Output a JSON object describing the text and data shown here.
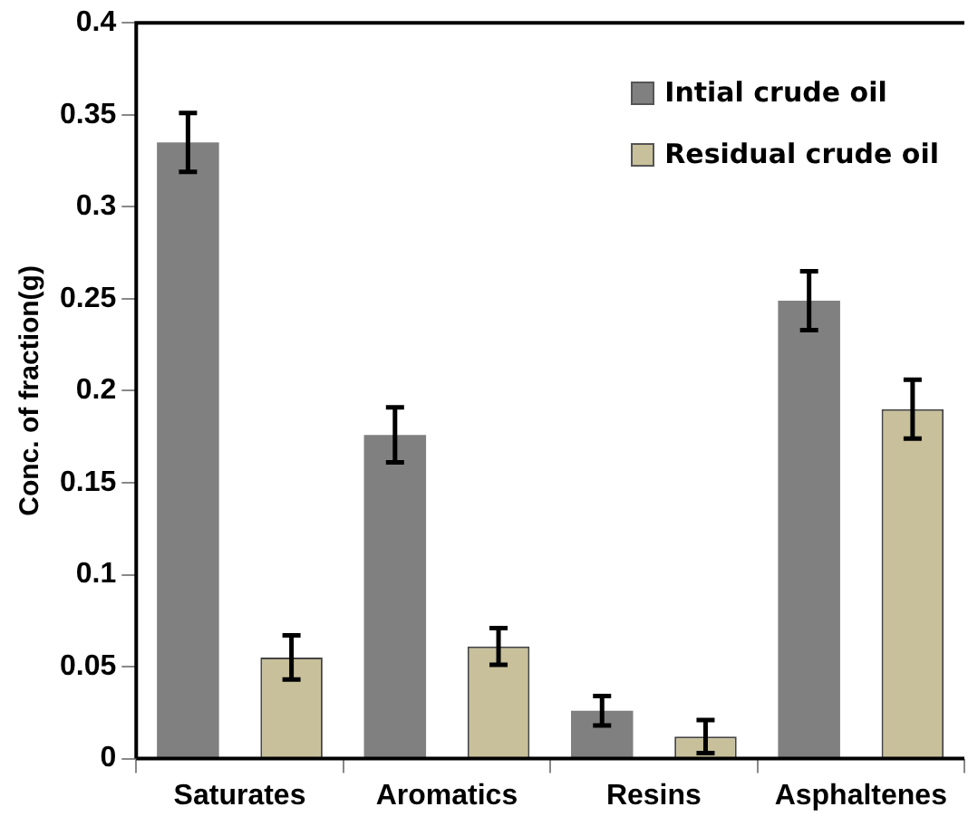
{
  "chart_data": {
    "type": "bar",
    "ylabel": "Conc. of fraction(g)",
    "categories": [
      "Saturates",
      "Aromatics",
      "Resins",
      "Asphaltenes"
    ],
    "series": [
      {
        "name": "Intial crude oil",
        "color": "#808080",
        "values": [
          0.335,
          0.176,
          0.026,
          0.249
        ],
        "errors": [
          0.016,
          0.015,
          0.008,
          0.016
        ]
      },
      {
        "name": "Residual crude oil",
        "color": "#c8c09a",
        "values": [
          0.055,
          0.061,
          0.012,
          0.19
        ],
        "errors": [
          0.012,
          0.01,
          0.009,
          0.016
        ]
      }
    ],
    "ylim": [
      0,
      0.4
    ],
    "yticks": [
      0,
      0.05,
      0.1,
      0.15,
      0.2,
      0.25,
      0.3,
      0.35,
      0.4
    ],
    "grid": false,
    "legend": "top right"
  }
}
